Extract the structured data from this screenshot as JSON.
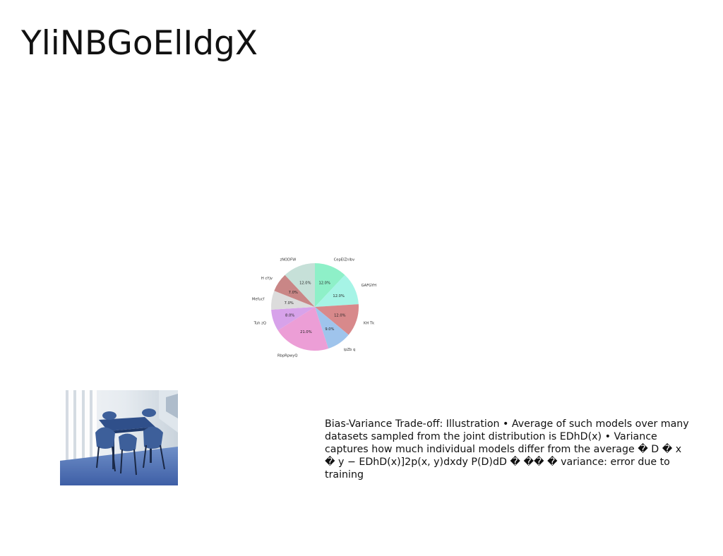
{
  "slide": {
    "title": "YliNBGoElIdgX",
    "body_text": "Bias-Variance Trade-off: Illustration • Average of such models over many datasets sampled from the joint distribution is EDhD(x) • Variance captures how much individual models differ from the average � D � x � y − EDhD(x)]2p(x, y)dxdy P(D)dD � �� � variance: error due to training"
  },
  "photo": {
    "icon": "dining-room-photo"
  },
  "chart_data": {
    "type": "pie",
    "title": "",
    "start_angle_deg": 90,
    "direction": "clockwise",
    "slices": [
      {
        "label": "CepEIZnlbv",
        "value": 12.0,
        "pct_label": "12.0%",
        "color": "#8ef0c8"
      },
      {
        "label": "GAFGYH",
        "value": 12.0,
        "pct_label": "12.0%",
        "color": "#a6f4e6"
      },
      {
        "label": "KH Tk",
        "value": 12.0,
        "pct_label": "12.0%",
        "color": "#d8898b"
      },
      {
        "label": "ipZb q",
        "value": 9.0,
        "pct_label": "9.0%",
        "color": "#9fc4ec"
      },
      {
        "label": "RbpRpwyQ",
        "value": 21.0,
        "pct_label": "21.0%",
        "color": "#ec9ed6"
      },
      {
        "label": "Tuh zQ",
        "value": 8.0,
        "pct_label": "8.0%",
        "color": "#d7a2ea"
      },
      {
        "label": "Mefucf",
        "value": 7.0,
        "pct_label": "7.0%",
        "color": "#dcdcdc"
      },
      {
        "label": "H cYjv",
        "value": 7.0,
        "pct_label": "7.0%",
        "color": "#c98686"
      },
      {
        "label": "zNODFW",
        "value": 12.0,
        "pct_label": "12.0%",
        "color": "#c6e0d8"
      }
    ]
  }
}
